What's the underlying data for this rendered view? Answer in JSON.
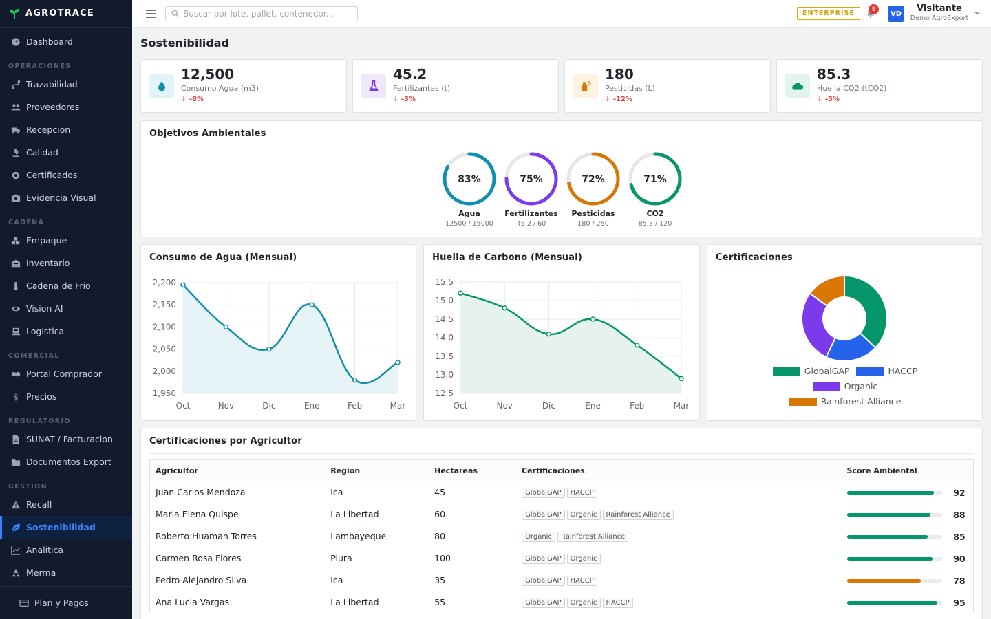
{
  "brand": "AGROTRACE",
  "sidebar": {
    "top": [
      {
        "label": "Dashboard",
        "icon": "dashboard-icon"
      }
    ],
    "sections": [
      {
        "title": "OPERACIONES",
        "items": [
          {
            "label": "Trazabilidad",
            "icon": "route-icon"
          },
          {
            "label": "Proveedores",
            "icon": "users-icon"
          },
          {
            "label": "Recepcion",
            "icon": "truck-icon"
          },
          {
            "label": "Calidad",
            "icon": "microscope-icon"
          },
          {
            "label": "Certificados",
            "icon": "certificate-icon"
          },
          {
            "label": "Evidencia Visual",
            "icon": "camera-icon"
          }
        ]
      },
      {
        "title": "CADENA",
        "items": [
          {
            "label": "Empaque",
            "icon": "boxes-icon"
          },
          {
            "label": "Inventario",
            "icon": "warehouse-icon"
          },
          {
            "label": "Cadena de Frio",
            "icon": "thermometer-icon"
          },
          {
            "label": "Vision AI",
            "icon": "eye-icon"
          },
          {
            "label": "Logistica",
            "icon": "shipping-icon"
          }
        ]
      },
      {
        "title": "COMERCIAL",
        "items": [
          {
            "label": "Portal Comprador",
            "icon": "handshake-icon"
          },
          {
            "label": "Precios",
            "icon": "dollar-icon"
          }
        ]
      },
      {
        "title": "REGULATORIO",
        "items": [
          {
            "label": "SUNAT / Facturacion",
            "icon": "invoice-icon"
          },
          {
            "label": "Documentos Export",
            "icon": "folder-icon"
          }
        ]
      },
      {
        "title": "GESTION",
        "items": [
          {
            "label": "Recall",
            "icon": "warning-icon"
          },
          {
            "label": "Sostenibilidad",
            "icon": "leaf-icon",
            "active": true
          },
          {
            "label": "Analitica",
            "icon": "chart-line-icon"
          },
          {
            "label": "Merma",
            "icon": "recycle-icon"
          }
        ]
      }
    ],
    "footer": {
      "label": "Plan y Pagos",
      "icon": "card-icon"
    }
  },
  "header": {
    "search_placeholder": "Buscar por lote, pallet, contenedor...",
    "plan_badge": "ENTERPRISE",
    "notifications": "9",
    "avatar_initials": "VD",
    "user_name": "Visitante",
    "user_org": "Demo AgroExport"
  },
  "page_title": "Sostenibilidad",
  "kpis": [
    {
      "value": "12,500",
      "label": "Consumo Agua (m3)",
      "change": "-8%",
      "icon": "water-drop-icon",
      "color": "#0e8fb0",
      "bg": "#e3f4f8"
    },
    {
      "value": "45.2",
      "label": "Fertilizantes (t)",
      "change": "-3%",
      "icon": "flask-icon",
      "color": "#7c3aed",
      "bg": "#efe8fd"
    },
    {
      "value": "180",
      "label": "Pesticidas (L)",
      "change": "-12%",
      "icon": "spray-icon",
      "color": "#d97706",
      "bg": "#fdf1e0"
    },
    {
      "value": "85.3",
      "label": "Huella CO2 (tCO2)",
      "change": "-5%",
      "icon": "cloud-icon",
      "color": "#059669",
      "bg": "#e2f4ec"
    }
  ],
  "goals": {
    "title": "Objetivos Ambientales",
    "items": [
      {
        "pct": 83,
        "pct_label": "83%",
        "name": "Agua",
        "sub": "12500 / 15000",
        "color": "#0e8fb0"
      },
      {
        "pct": 75,
        "pct_label": "75%",
        "name": "Fertilizantes",
        "sub": "45.2 / 60",
        "color": "#7c3aed"
      },
      {
        "pct": 72,
        "pct_label": "72%",
        "name": "Pesticidas",
        "sub": "180 / 250",
        "color": "#d97706"
      },
      {
        "pct": 71,
        "pct_label": "71%",
        "name": "CO2",
        "sub": "85.3 / 120",
        "color": "#059669"
      }
    ]
  },
  "chart_data": [
    {
      "type": "line",
      "title": "Consumo de Agua (Mensual)",
      "categories": [
        "Oct",
        "Nov",
        "Dic",
        "Ene",
        "Feb",
        "Mar"
      ],
      "values": [
        2195,
        2100,
        2050,
        2150,
        1980,
        2020
      ],
      "yticks": [
        "2,200",
        "2,150",
        "2,100",
        "2,050",
        "2,000",
        "1,950"
      ],
      "ylim": [
        1950,
        2200
      ],
      "color": "#0e8fb0",
      "fill": "#e6f4f8",
      "grid": true
    },
    {
      "type": "line",
      "title": "Huella de Carbono (Mensual)",
      "categories": [
        "Oct",
        "Nov",
        "Dic",
        "Ene",
        "Feb",
        "Mar"
      ],
      "values": [
        15.2,
        14.8,
        14.1,
        14.5,
        13.8,
        12.9
      ],
      "yticks": [
        "15.5",
        "15.0",
        "14.5",
        "14.0",
        "13.5",
        "13.0",
        "12.5"
      ],
      "ylim": [
        12.5,
        15.5
      ],
      "color": "#059669",
      "fill": "#e5f3ec",
      "grid": true
    },
    {
      "type": "pie",
      "title": "Certificaciones",
      "categories": [
        "GlobalGAP",
        "HACCP",
        "Organic",
        "Rainforest Alliance"
      ],
      "values": [
        37,
        20,
        28,
        15
      ],
      "colors": [
        "#059669",
        "#2563eb",
        "#7c3aed",
        "#d97706"
      ],
      "legend": "bottom"
    }
  ],
  "table": {
    "title": "Certificaciones por Agricultor",
    "columns": [
      "Agricultor",
      "Region",
      "Hectareas",
      "Certificaciones",
      "Score Ambiental"
    ],
    "rows": [
      {
        "name": "Juan Carlos Mendoza",
        "region": "Ica",
        "ha": "45",
        "certs": [
          "GlobalGAP",
          "HACCP"
        ],
        "score": 92,
        "score_label": "92",
        "color": "#059669"
      },
      {
        "name": "Maria Elena Quispe",
        "region": "La Libertad",
        "ha": "60",
        "certs": [
          "GlobalGAP",
          "Organic",
          "Rainforest Alliance"
        ],
        "score": 88,
        "score_label": "88",
        "color": "#059669"
      },
      {
        "name": "Roberto Huaman Torres",
        "region": "Lambayeque",
        "ha": "80",
        "certs": [
          "Organic",
          "Rainforest Alliance"
        ],
        "score": 85,
        "score_label": "85",
        "color": "#059669"
      },
      {
        "name": "Carmen Rosa Flores",
        "region": "Piura",
        "ha": "100",
        "certs": [
          "GlobalGAP",
          "Organic"
        ],
        "score": 90,
        "score_label": "90",
        "color": "#059669"
      },
      {
        "name": "Pedro Alejandro Silva",
        "region": "Ica",
        "ha": "35",
        "certs": [
          "GlobalGAP",
          "HACCP"
        ],
        "score": 78,
        "score_label": "78",
        "color": "#d97706"
      },
      {
        "name": "Ana Lucia Vargas",
        "region": "La Libertad",
        "ha": "55",
        "certs": [
          "GlobalGAP",
          "Organic",
          "HACCP"
        ],
        "score": 95,
        "score_label": "95",
        "color": "#059669"
      }
    ]
  }
}
